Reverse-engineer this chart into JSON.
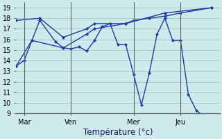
{
  "background_color": "#ceeaea",
  "grid_color": "#a8c8c8",
  "line_color": "#1a3aaa",
  "marker_color": "#1a3aaa",
  "xlabel": "Température (°c)",
  "xlabel_fontsize": 8.5,
  "tick_fontsize": 7,
  "ylim": [
    9,
    19.5
  ],
  "yticks": [
    9,
    10,
    11,
    12,
    13,
    14,
    15,
    16,
    17,
    18,
    19
  ],
  "xlim": [
    0,
    26
  ],
  "day_labels": [
    "Mar",
    "Ven",
    "Mer",
    "Jeu"
  ],
  "day_positions": [
    1,
    7,
    15,
    21
  ],
  "series_main": {
    "x": [
      0,
      1,
      2,
      3,
      5,
      6,
      7,
      8,
      9,
      10,
      11,
      12,
      13,
      14,
      15,
      16,
      17,
      18,
      19,
      20,
      21,
      22,
      23,
      24,
      25
    ],
    "y": [
      13.5,
      14.0,
      15.9,
      17.8,
      15.8,
      15.2,
      15.1,
      15.3,
      14.9,
      15.9,
      17.2,
      17.5,
      15.5,
      15.5,
      12.7,
      9.8,
      12.8,
      16.5,
      18.0,
      15.9,
      15.9,
      10.8,
      9.3,
      8.7,
      19.0
    ]
  },
  "series_top": {
    "x": [
      0,
      3,
      6,
      9,
      10,
      14,
      15,
      17,
      19,
      21,
      25
    ],
    "y": [
      17.8,
      18.0,
      16.2,
      17.0,
      17.5,
      17.5,
      17.8,
      18.0,
      18.2,
      18.5,
      19.0
    ]
  },
  "series_low": {
    "x": [
      0,
      2,
      6,
      9,
      10,
      14,
      19,
      25
    ],
    "y": [
      13.5,
      15.9,
      15.2,
      16.5,
      17.0,
      17.5,
      18.5,
      19.0
    ]
  }
}
